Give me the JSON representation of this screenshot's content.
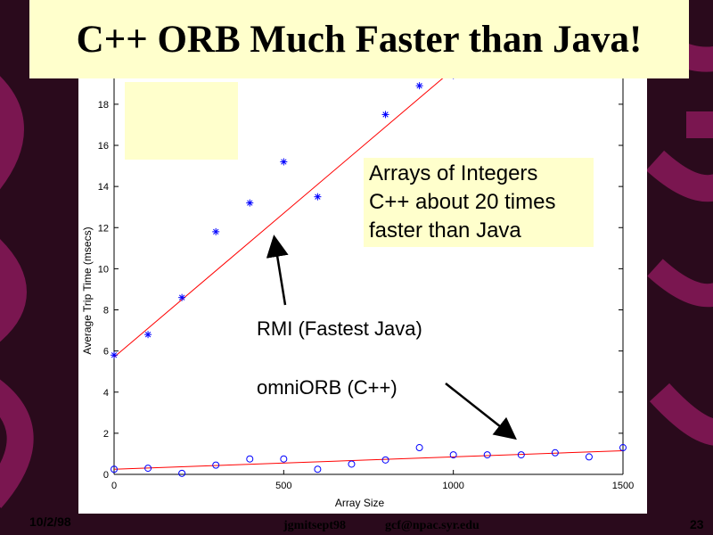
{
  "slide": {
    "title": "C++ ORB Much Faster than Java!",
    "callout_lines": [
      "Arrays of Integers",
      "C++ about 20 times",
      "faster than Java"
    ],
    "rmi_label": "RMI (Fastest Java)",
    "omni_label": "omniORB (C++)",
    "footer_date": "10/2/98",
    "footer_id": "jgmitsept98",
    "footer_email": "gcf@npac.syr.edu",
    "page_number": "23"
  },
  "colors": {
    "background": "#2a0a1c",
    "stripe": "#7a1650",
    "note_fill": "#ffffcc",
    "series_rmi": "#0000ff",
    "series_omni": "#0000ff",
    "fit_line": "#ff0000"
  },
  "chart_data": {
    "type": "scatter",
    "title": "",
    "xlabel": "Array Size",
    "ylabel": "Average Trip Time (msecs)",
    "xlim": [
      0,
      1500
    ],
    "ylim": [
      0,
      19.6
    ],
    "x_ticks": [
      0,
      500,
      1000,
      1500
    ],
    "y_ticks": [
      0,
      2,
      4,
      6,
      8,
      10,
      12,
      14,
      16,
      18
    ],
    "grid": false,
    "series": [
      {
        "marker": "asterisk",
        "x": [
          0,
          100,
          200,
          300,
          400,
          500,
          600,
          800,
          900,
          1000
        ],
        "y": [
          5.8,
          6.8,
          8.6,
          11.8,
          13.2,
          15.2,
          13.5,
          17.5,
          18.9,
          19.4
        ],
        "fit": {
          "x": [
            0,
            1000
          ],
          "y": [
            5.7,
            19.7
          ]
        }
      },
      {
        "marker": "circle",
        "x": [
          0,
          100,
          200,
          300,
          400,
          500,
          600,
          700,
          800,
          900,
          1000,
          1100,
          1200,
          1300,
          1400,
          1500
        ],
        "y": [
          0.25,
          0.3,
          0.05,
          0.45,
          0.75,
          0.75,
          0.25,
          0.5,
          0.7,
          1.3,
          0.95,
          0.95,
          0.95,
          1.05,
          0.85,
          1.3
        ],
        "fit": {
          "x": [
            0,
            1500
          ],
          "y": [
            0.25,
            1.15
          ]
        }
      }
    ]
  }
}
